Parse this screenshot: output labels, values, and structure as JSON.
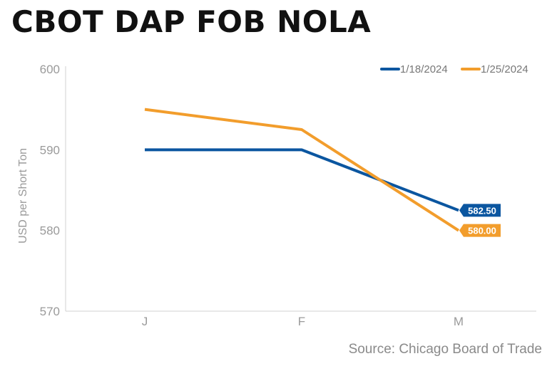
{
  "chart_data": {
    "type": "line",
    "title": "CBOT DAP FOB NOLA",
    "ylabel": "USD per Short Ton",
    "xlabel": "",
    "categories": [
      "J",
      "F",
      "M"
    ],
    "ylim": [
      570,
      600
    ],
    "yticks": [
      570,
      580,
      590,
      600
    ],
    "grid": false,
    "legend_position": "top-right",
    "series": [
      {
        "name": "1/18/2024",
        "values": [
          590.0,
          590.0,
          582.5
        ],
        "color": "#0b56a0",
        "end_label": "582.50"
      },
      {
        "name": "1/25/2024",
        "values": [
          595.0,
          592.5,
          580.0
        ],
        "color": "#f29d2c",
        "end_label": "580.00"
      }
    ],
    "source": "Source: Chicago Board of Trade"
  }
}
